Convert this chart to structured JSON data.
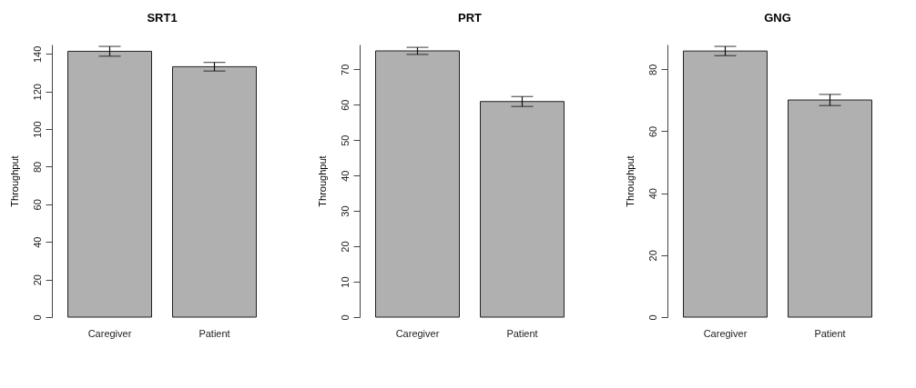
{
  "chart_data": [
    {
      "type": "bar",
      "title": "SRT1",
      "ylabel": "Throughput",
      "categories": [
        "Caregiver",
        "Patient"
      ],
      "values": [
        141.4,
        133.2
      ],
      "errors": [
        2.6,
        2.3
      ],
      "color": "#b0b0b0",
      "ylim": [
        0,
        145
      ],
      "yticks": [
        0,
        20,
        40,
        60,
        80,
        100,
        120,
        140
      ]
    },
    {
      "type": "bar",
      "title": "PRT",
      "ylabel": "Throughput",
      "categories": [
        "Caregiver",
        "Patient"
      ],
      "values": [
        75.2,
        60.9
      ],
      "errors": [
        1.0,
        1.4
      ],
      "color": "#b0b0b0",
      "ylim": [
        0,
        77
      ],
      "yticks": [
        0,
        10,
        20,
        30,
        40,
        50,
        60,
        70
      ]
    },
    {
      "type": "bar",
      "title": "GNG",
      "ylabel": "Throughput",
      "categories": [
        "Caregiver",
        "Patient"
      ],
      "values": [
        85.9,
        70.1
      ],
      "errors": [
        1.5,
        1.8
      ],
      "color": "#b0b0b0",
      "ylim": [
        0,
        88
      ],
      "yticks": [
        0,
        20,
        40,
        60,
        80
      ]
    }
  ]
}
